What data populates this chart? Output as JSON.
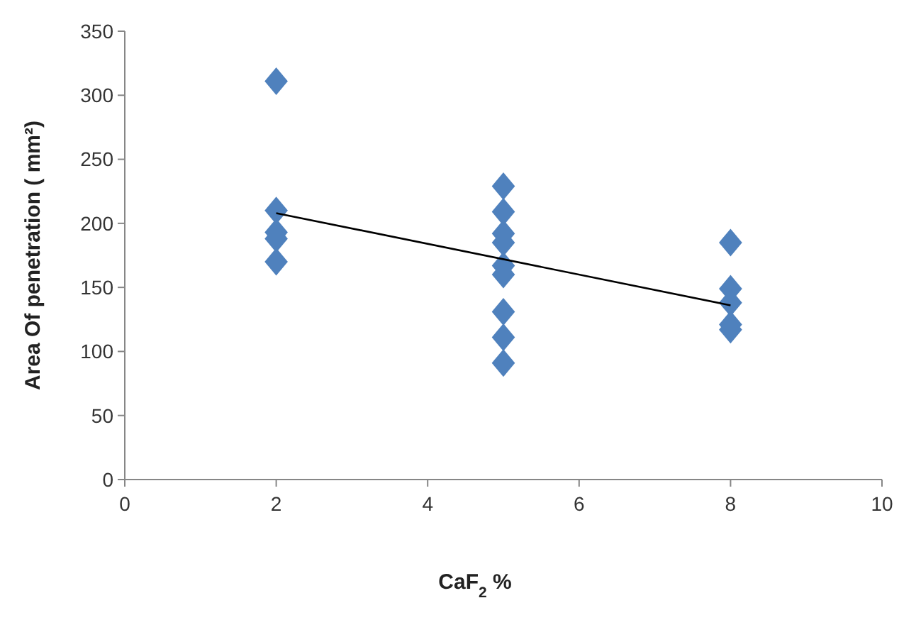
{
  "chart_data": {
    "type": "scatter",
    "xlabel": "CaF$_{2}$ %",
    "ylabel": "Area Of penetration ( mm²)",
    "xlim": [
      0,
      10
    ],
    "xticks": [
      0,
      2,
      4,
      6,
      8,
      10
    ],
    "ylim": [
      0,
      350
    ],
    "yticks": [
      0,
      50,
      100,
      150,
      200,
      250,
      300,
      350
    ],
    "grid": false,
    "series": [
      {
        "color": "#4f81bd",
        "marker": "diamond",
        "x": [
          2,
          2,
          2,
          2,
          2,
          5,
          5,
          5,
          5,
          5,
          5,
          5,
          5,
          5,
          8,
          8,
          8,
          8,
          8
        ],
        "values": [
          311,
          210,
          193,
          188,
          170,
          229,
          209,
          192,
          185,
          167,
          160,
          131,
          111,
          91,
          185,
          149,
          138,
          121,
          117
        ]
      },
      {
        "type": "line",
        "color": "#000000",
        "marker": "none",
        "x": [
          2,
          8
        ],
        "values": [
          208,
          136
        ]
      }
    ]
  }
}
